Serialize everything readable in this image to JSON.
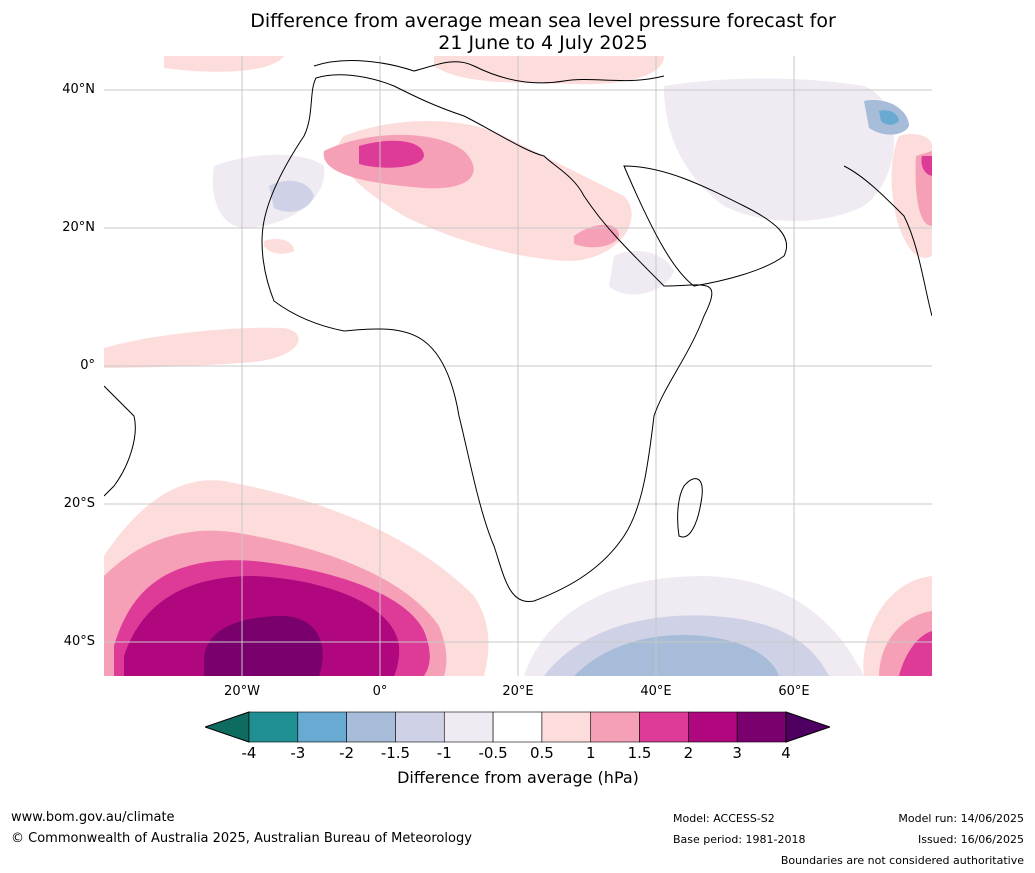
{
  "title_line1": "Difference from average mean sea level pressure forecast for",
  "title_line2": "21 June to 4 July 2025",
  "lat_ticks": [
    "40°N",
    "20°N",
    "0°",
    "20°S",
    "40°S"
  ],
  "lon_ticks": [
    "20°W",
    "0°",
    "20°E",
    "40°E",
    "60°E"
  ],
  "colorbar": {
    "labels": [
      "-4",
      "-3",
      "-2",
      "-1.5",
      "-1",
      "-0.5",
      "0.5",
      "1",
      "1.5",
      "2",
      "3",
      "4"
    ],
    "colors": [
      "#0e6b5f",
      "#1f8f93",
      "#68aad2",
      "#a6bcd8",
      "#cfd2e6",
      "#f0ebf2",
      "#ffffff",
      "#fddcdc",
      "#f6a0b8",
      "#de3a98",
      "#b0067e",
      "#7a006e",
      "#4e0062"
    ],
    "title": "Difference from average (hPa)"
  },
  "footer": {
    "url": "www.bom.gov.au/climate",
    "copyright": "© Commonwealth of Australia 2025, Australian Bureau of Meteorology",
    "model": "Model: ACCESS-S2",
    "base_period": "Base period: 1981-2018",
    "model_run": "Model run: 14/06/2025",
    "issued": "Issued: 16/06/2025",
    "disclaimer": "Boundaries are not considered authoritative"
  }
}
